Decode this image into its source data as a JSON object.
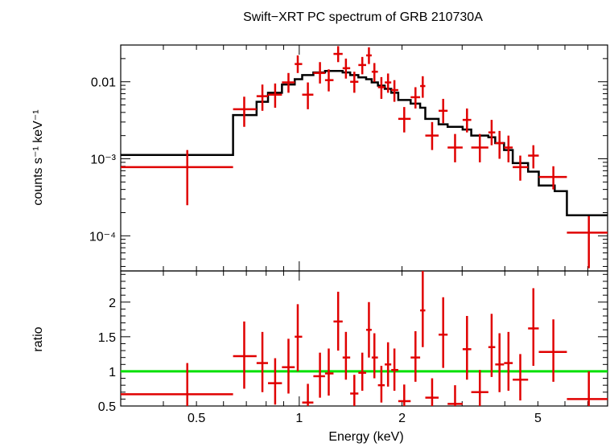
{
  "chart_data": [
    {
      "type": "scatter",
      "panel": "spectrum",
      "title": "Swift−XRT PC spectrum of GRB 210730A",
      "ylabel": "counts s⁻¹ keV⁻¹",
      "xscale": "log",
      "yscale": "log",
      "xlim": [
        0.3,
        8.0
      ],
      "ylim": [
        3.5e-05,
        0.03
      ],
      "yticks": [
        {
          "value": 0.01,
          "label": "0.01"
        },
        {
          "value": 0.001,
          "label": "10⁻³"
        },
        {
          "value": 0.0001,
          "label": "10⁻⁴"
        }
      ],
      "data": {
        "color": "#e00000",
        "points": [
          {
            "x": 0.47,
            "xlo": 0.3,
            "xhi": 0.64,
            "y": 0.00078,
            "ylo": 0.00025,
            "yhi": 0.0013
          },
          {
            "x": 0.69,
            "xlo": 0.64,
            "xhi": 0.75,
            "y": 0.0044,
            "ylo": 0.0026,
            "yhi": 0.0064
          },
          {
            "x": 0.78,
            "xlo": 0.75,
            "xhi": 0.81,
            "y": 0.0065,
            "ylo": 0.0042,
            "yhi": 0.0092
          },
          {
            "x": 0.85,
            "xlo": 0.81,
            "xhi": 0.89,
            "y": 0.0068,
            "ylo": 0.0046,
            "yhi": 0.0095
          },
          {
            "x": 0.93,
            "xlo": 0.89,
            "xhi": 0.97,
            "y": 0.0098,
            "ylo": 0.0072,
            "yhi": 0.013
          },
          {
            "x": 0.99,
            "xlo": 0.97,
            "xhi": 1.02,
            "y": 0.017,
            "ylo": 0.013,
            "yhi": 0.022
          },
          {
            "x": 1.06,
            "xlo": 1.02,
            "xhi": 1.1,
            "y": 0.0068,
            "ylo": 0.0044,
            "yhi": 0.0098
          },
          {
            "x": 1.15,
            "xlo": 1.1,
            "xhi": 1.19,
            "y": 0.013,
            "ylo": 0.0095,
            "yhi": 0.018
          },
          {
            "x": 1.22,
            "xlo": 1.19,
            "xhi": 1.26,
            "y": 0.0105,
            "ylo": 0.0075,
            "yhi": 0.0145
          },
          {
            "x": 1.3,
            "xlo": 1.26,
            "xhi": 1.34,
            "y": 0.023,
            "ylo": 0.018,
            "yhi": 0.029
          },
          {
            "x": 1.37,
            "xlo": 1.34,
            "xhi": 1.41,
            "y": 0.015,
            "ylo": 0.011,
            "yhi": 0.02
          },
          {
            "x": 1.45,
            "xlo": 1.41,
            "xhi": 1.49,
            "y": 0.01,
            "ylo": 0.0072,
            "yhi": 0.0135
          },
          {
            "x": 1.53,
            "xlo": 1.49,
            "xhi": 1.57,
            "y": 0.0165,
            "ylo": 0.0125,
            "yhi": 0.021
          },
          {
            "x": 1.6,
            "xlo": 1.57,
            "xhi": 1.63,
            "y": 0.022,
            "ylo": 0.017,
            "yhi": 0.028
          },
          {
            "x": 1.66,
            "xlo": 1.63,
            "xhi": 1.7,
            "y": 0.0135,
            "ylo": 0.01,
            "yhi": 0.0175
          },
          {
            "x": 1.74,
            "xlo": 1.7,
            "xhi": 1.78,
            "y": 0.0085,
            "ylo": 0.006,
            "yhi": 0.0115
          },
          {
            "x": 1.82,
            "xlo": 1.78,
            "xhi": 1.86,
            "y": 0.0098,
            "ylo": 0.0072,
            "yhi": 0.0128
          },
          {
            "x": 1.9,
            "xlo": 1.86,
            "xhi": 1.95,
            "y": 0.0078,
            "ylo": 0.0055,
            "yhi": 0.0105
          },
          {
            "x": 2.03,
            "xlo": 1.95,
            "xhi": 2.12,
            "y": 0.0033,
            "ylo": 0.0022,
            "yhi": 0.0047
          },
          {
            "x": 2.19,
            "xlo": 2.12,
            "xhi": 2.26,
            "y": 0.0063,
            "ylo": 0.0045,
            "yhi": 0.0085
          },
          {
            "x": 2.3,
            "xlo": 2.26,
            "xhi": 2.34,
            "y": 0.0088,
            "ylo": 0.0062,
            "yhi": 0.0118
          },
          {
            "x": 2.45,
            "xlo": 2.34,
            "xhi": 2.56,
            "y": 0.002,
            "ylo": 0.0013,
            "yhi": 0.003
          },
          {
            "x": 2.64,
            "xlo": 2.56,
            "xhi": 2.72,
            "y": 0.0042,
            "ylo": 0.0029,
            "yhi": 0.006
          },
          {
            "x": 2.86,
            "xlo": 2.72,
            "xhi": 3.01,
            "y": 0.0014,
            "ylo": 0.0009,
            "yhi": 0.0021
          },
          {
            "x": 3.1,
            "xlo": 3.01,
            "xhi": 3.19,
            "y": 0.0032,
            "ylo": 0.0022,
            "yhi": 0.0045
          },
          {
            "x": 3.38,
            "xlo": 3.19,
            "xhi": 3.58,
            "y": 0.0014,
            "ylo": 0.0009,
            "yhi": 0.0021
          },
          {
            "x": 3.66,
            "xlo": 3.58,
            "xhi": 3.75,
            "y": 0.0022,
            "ylo": 0.0015,
            "yhi": 0.0032
          },
          {
            "x": 3.86,
            "xlo": 3.75,
            "xhi": 3.98,
            "y": 0.0016,
            "ylo": 0.001,
            "yhi": 0.0023
          },
          {
            "x": 4.1,
            "xlo": 3.98,
            "xhi": 4.22,
            "y": 0.0014,
            "ylo": 0.0009,
            "yhi": 0.002
          },
          {
            "x": 4.44,
            "xlo": 4.22,
            "xhi": 4.68,
            "y": 0.00078,
            "ylo": 0.00052,
            "yhi": 0.0011
          },
          {
            "x": 4.85,
            "xlo": 4.68,
            "xhi": 5.03,
            "y": 0.0011,
            "ylo": 0.00075,
            "yhi": 0.0015
          },
          {
            "x": 5.55,
            "xlo": 5.03,
            "xhi": 6.08,
            "y": 0.00058,
            "ylo": 0.0004,
            "yhi": 0.0008
          },
          {
            "x": 7.05,
            "xlo": 6.08,
            "xhi": 8.0,
            "y": 0.00011,
            "ylo": 3.8e-05,
            "yhi": 0.00018
          }
        ]
      },
      "model": {
        "color": "#000000",
        "steps": [
          {
            "xlo": 0.3,
            "xhi": 0.64,
            "y": 0.00112
          },
          {
            "xlo": 0.64,
            "xhi": 0.75,
            "y": 0.0037
          },
          {
            "xlo": 0.75,
            "xhi": 0.81,
            "y": 0.0055
          },
          {
            "xlo": 0.81,
            "xhi": 0.89,
            "y": 0.0072
          },
          {
            "xlo": 0.89,
            "xhi": 0.97,
            "y": 0.0092
          },
          {
            "xlo": 0.97,
            "xhi": 1.02,
            "y": 0.0108
          },
          {
            "xlo": 1.02,
            "xhi": 1.1,
            "y": 0.0122
          },
          {
            "xlo": 1.1,
            "xhi": 1.19,
            "y": 0.0132
          },
          {
            "xlo": 1.19,
            "xhi": 1.26,
            "y": 0.0138
          },
          {
            "xlo": 1.26,
            "xhi": 1.34,
            "y": 0.0138
          },
          {
            "xlo": 1.34,
            "xhi": 1.41,
            "y": 0.0132
          },
          {
            "xlo": 1.41,
            "xhi": 1.49,
            "y": 0.0122
          },
          {
            "xlo": 1.49,
            "xhi": 1.57,
            "y": 0.0114
          },
          {
            "xlo": 1.57,
            "xhi": 1.63,
            "y": 0.0108
          },
          {
            "xlo": 1.63,
            "xhi": 1.7,
            "y": 0.0098
          },
          {
            "xlo": 1.7,
            "xhi": 1.78,
            "y": 0.0089
          },
          {
            "xlo": 1.78,
            "xhi": 1.86,
            "y": 0.0081
          },
          {
            "xlo": 1.86,
            "xhi": 1.95,
            "y": 0.0072
          },
          {
            "xlo": 1.95,
            "xhi": 2.12,
            "y": 0.0058
          },
          {
            "xlo": 2.12,
            "xhi": 2.26,
            "y": 0.0052
          },
          {
            "xlo": 2.26,
            "xhi": 2.34,
            "y": 0.0046
          },
          {
            "xlo": 2.34,
            "xhi": 2.56,
            "y": 0.0033
          },
          {
            "xlo": 2.56,
            "xhi": 2.72,
            "y": 0.0028
          },
          {
            "xlo": 2.72,
            "xhi": 3.01,
            "y": 0.0026
          },
          {
            "xlo": 3.01,
            "xhi": 3.19,
            "y": 0.0024
          },
          {
            "xlo": 3.19,
            "xhi": 3.58,
            "y": 0.002
          },
          {
            "xlo": 3.58,
            "xhi": 3.75,
            "y": 0.0019
          },
          {
            "xlo": 3.75,
            "xhi": 3.98,
            "y": 0.0016
          },
          {
            "xlo": 3.98,
            "xhi": 4.22,
            "y": 0.0013
          },
          {
            "xlo": 4.22,
            "xhi": 4.68,
            "y": 0.00088
          },
          {
            "xlo": 4.68,
            "xhi": 5.03,
            "y": 0.00068
          },
          {
            "xlo": 5.03,
            "xhi": 5.6,
            "y": 0.00045
          },
          {
            "xlo": 5.6,
            "xhi": 6.08,
            "y": 0.00038
          },
          {
            "xlo": 6.08,
            "xhi": 8.0,
            "y": 0.000185
          }
        ]
      }
    },
    {
      "type": "scatter",
      "panel": "ratio",
      "xlabel": "Energy (keV)",
      "ylabel": "ratio",
      "xscale": "log",
      "yscale": "linear",
      "xlim": [
        0.3,
        8.0
      ],
      "ylim": [
        0.5,
        2.45
      ],
      "xticks": [
        {
          "value": 0.5,
          "label": "0.5"
        },
        {
          "value": 1,
          "label": "1"
        },
        {
          "value": 2,
          "label": "2"
        },
        {
          "value": 5,
          "label": "5"
        }
      ],
      "yticks": [
        {
          "value": 0.5,
          "label": "0.5"
        },
        {
          "value": 1,
          "label": "1"
        },
        {
          "value": 1.5,
          "label": "1.5"
        },
        {
          "value": 2,
          "label": "2"
        }
      ],
      "reference_line": {
        "y": 1,
        "color": "#00e000"
      },
      "data": {
        "color": "#e00000",
        "points": [
          {
            "x": 0.47,
            "xlo": 0.3,
            "xhi": 0.64,
            "y": 0.67,
            "ylo": 0.28,
            "yhi": 1.12
          },
          {
            "x": 0.69,
            "xlo": 0.64,
            "xhi": 0.75,
            "y": 1.22,
            "ylo": 0.75,
            "yhi": 1.72
          },
          {
            "x": 0.78,
            "xlo": 0.75,
            "xhi": 0.81,
            "y": 1.12,
            "ylo": 0.7,
            "yhi": 1.57
          },
          {
            "x": 0.85,
            "xlo": 0.81,
            "xhi": 0.89,
            "y": 0.83,
            "ylo": 0.52,
            "yhi": 1.19
          },
          {
            "x": 0.93,
            "xlo": 0.89,
            "xhi": 0.97,
            "y": 1.06,
            "ylo": 0.68,
            "yhi": 1.47
          },
          {
            "x": 0.99,
            "xlo": 0.97,
            "xhi": 1.02,
            "y": 1.5,
            "ylo": 1.0,
            "yhi": 1.97
          },
          {
            "x": 1.06,
            "xlo": 1.02,
            "xhi": 1.1,
            "y": 0.55,
            "ylo": 0.3,
            "yhi": 0.82
          },
          {
            "x": 1.15,
            "xlo": 1.1,
            "xhi": 1.19,
            "y": 0.93,
            "ylo": 0.62,
            "yhi": 1.27
          },
          {
            "x": 1.22,
            "xlo": 1.19,
            "xhi": 1.26,
            "y": 0.97,
            "ylo": 0.65,
            "yhi": 1.33
          },
          {
            "x": 1.3,
            "xlo": 1.26,
            "xhi": 1.34,
            "y": 1.72,
            "ylo": 1.3,
            "yhi": 2.15
          },
          {
            "x": 1.37,
            "xlo": 1.34,
            "xhi": 1.41,
            "y": 1.2,
            "ylo": 0.88,
            "yhi": 1.57
          },
          {
            "x": 1.45,
            "xlo": 1.41,
            "xhi": 1.49,
            "y": 0.68,
            "ylo": 0.48,
            "yhi": 0.95
          },
          {
            "x": 1.53,
            "xlo": 1.49,
            "xhi": 1.57,
            "y": 0.98,
            "ylo": 0.72,
            "yhi": 1.27
          },
          {
            "x": 1.6,
            "xlo": 1.57,
            "xhi": 1.63,
            "y": 1.6,
            "ylo": 1.2,
            "yhi": 2.0
          },
          {
            "x": 1.66,
            "xlo": 1.63,
            "xhi": 1.7,
            "y": 1.2,
            "ylo": 0.9,
            "yhi": 1.55
          },
          {
            "x": 1.74,
            "xlo": 1.7,
            "xhi": 1.78,
            "y": 0.8,
            "ylo": 0.55,
            "yhi": 1.08
          },
          {
            "x": 1.82,
            "xlo": 1.78,
            "xhi": 1.86,
            "y": 1.1,
            "ylo": 0.78,
            "yhi": 1.42
          },
          {
            "x": 1.9,
            "xlo": 1.86,
            "xhi": 1.95,
            "y": 1.02,
            "ylo": 0.72,
            "yhi": 1.33
          },
          {
            "x": 2.03,
            "xlo": 1.95,
            "xhi": 2.12,
            "y": 0.57,
            "ylo": 0.37,
            "yhi": 0.81
          },
          {
            "x": 2.19,
            "xlo": 2.12,
            "xhi": 2.26,
            "y": 1.2,
            "ylo": 0.85,
            "yhi": 1.58
          },
          {
            "x": 2.3,
            "xlo": 2.26,
            "xhi": 2.34,
            "y": 1.88,
            "ylo": 1.35,
            "yhi": 2.45
          },
          {
            "x": 2.45,
            "xlo": 2.34,
            "xhi": 2.56,
            "y": 0.62,
            "ylo": 0.38,
            "yhi": 0.9
          },
          {
            "x": 2.64,
            "xlo": 2.56,
            "xhi": 2.72,
            "y": 1.53,
            "ylo": 1.05,
            "yhi": 2.07
          },
          {
            "x": 2.86,
            "xlo": 2.72,
            "xhi": 3.01,
            "y": 0.53,
            "ylo": 0.33,
            "yhi": 0.8
          },
          {
            "x": 3.1,
            "xlo": 3.01,
            "xhi": 3.19,
            "y": 1.32,
            "ylo": 0.88,
            "yhi": 1.8
          },
          {
            "x": 3.38,
            "xlo": 3.19,
            "xhi": 3.58,
            "y": 0.7,
            "ylo": 0.45,
            "yhi": 1.02
          },
          {
            "x": 3.66,
            "xlo": 3.58,
            "xhi": 3.75,
            "y": 1.35,
            "ylo": 0.92,
            "yhi": 1.83
          },
          {
            "x": 3.86,
            "xlo": 3.75,
            "xhi": 3.98,
            "y": 1.1,
            "ylo": 0.7,
            "yhi": 1.55
          },
          {
            "x": 4.1,
            "xlo": 3.98,
            "xhi": 4.22,
            "y": 1.12,
            "ylo": 0.72,
            "yhi": 1.57
          },
          {
            "x": 4.44,
            "xlo": 4.22,
            "xhi": 4.68,
            "y": 0.88,
            "ylo": 0.58,
            "yhi": 1.25
          },
          {
            "x": 4.85,
            "xlo": 4.68,
            "xhi": 5.03,
            "y": 1.62,
            "ylo": 1.08,
            "yhi": 2.2
          },
          {
            "x": 5.55,
            "xlo": 5.03,
            "xhi": 6.08,
            "y": 1.28,
            "ylo": 0.85,
            "yhi": 1.75
          },
          {
            "x": 7.05,
            "xlo": 6.08,
            "xhi": 8.0,
            "y": 0.6,
            "ylo": 0.2,
            "yhi": 1.0
          }
        ]
      }
    }
  ]
}
